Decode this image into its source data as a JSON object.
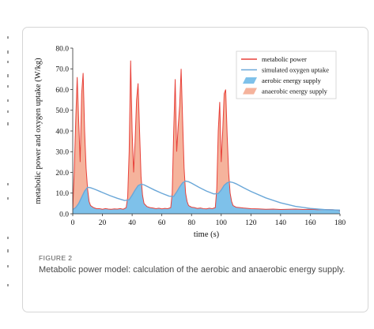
{
  "figure": {
    "label": "FIGURE 2",
    "caption": "Metabolic power model: calculation of the aerobic and anaerobic energy supply."
  },
  "colors": {
    "metabolic": "#e8413a",
    "oxygen": "#6aa7d8",
    "aerobic_fill": "#7ec1ea",
    "anaerobic_fill": "#f5b39c"
  },
  "chart_data": {
    "type": "area",
    "xlabel": "time (s)",
    "ylabel": "metabolic power and oxygen uptake (W/kg)",
    "xlim": [
      0,
      180
    ],
    "ylim": [
      0,
      80
    ],
    "xticks": [
      0,
      20,
      40,
      60,
      80,
      100,
      120,
      140,
      160,
      180
    ],
    "yticks": [
      "0.0",
      "10.0",
      "20.0",
      "30.0",
      "40.0",
      "50.0",
      "60.0",
      "70.0",
      "80.0"
    ],
    "grid": false,
    "legend_position": "top-right",
    "legend": [
      {
        "label": "metabolic power",
        "kind": "line",
        "color": "#e8413a"
      },
      {
        "label": "simulated oxygen uptake",
        "kind": "line",
        "color": "#6aa7d8"
      },
      {
        "label": "aerobic energy supply",
        "kind": "patch",
        "color": "#7ec1ea"
      },
      {
        "label": "anaerobic energy supply",
        "kind": "patch",
        "color": "#f5b39c"
      }
    ],
    "series": [
      {
        "name": "metabolic power",
        "x": [
          0,
          1,
          2,
          3,
          4,
          5,
          6,
          7,
          8,
          9,
          10,
          11,
          12,
          14,
          16,
          18,
          20,
          22,
          24,
          26,
          28,
          30,
          32,
          34,
          36,
          37,
          38,
          39,
          40,
          41,
          42,
          43,
          44,
          45,
          46,
          47,
          48,
          50,
          52,
          54,
          56,
          58,
          60,
          62,
          64,
          66,
          67,
          68,
          69,
          70,
          71,
          72,
          73,
          74,
          75,
          76,
          77,
          78,
          80,
          82,
          84,
          86,
          88,
          90,
          92,
          94,
          96,
          97,
          98,
          99,
          100,
          101,
          102,
          103,
          104,
          105,
          106,
          107,
          108,
          110,
          115,
          120,
          125,
          130,
          135,
          140,
          145,
          150,
          155,
          160,
          165,
          170,
          175,
          178,
          180
        ],
        "y": [
          2,
          20,
          45,
          66,
          45,
          25,
          58,
          68,
          40,
          22,
          12,
          6,
          4,
          3,
          2.5,
          2.5,
          2.2,
          2.5,
          2.3,
          2.2,
          2.4,
          2.3,
          2.5,
          2.2,
          3,
          8,
          30,
          74,
          40,
          20,
          35,
          55,
          63,
          40,
          18,
          9,
          5,
          3.5,
          3,
          2.8,
          2.5,
          2.7,
          2.4,
          2.6,
          2.5,
          3,
          10,
          40,
          65,
          30,
          42,
          52,
          70,
          45,
          22,
          10,
          6,
          4,
          3.2,
          3,
          2.6,
          2.8,
          2.5,
          2.4,
          2.7,
          2.5,
          3,
          12,
          40,
          54,
          25,
          40,
          58,
          60,
          38,
          20,
          10,
          6,
          4,
          3.2,
          2.8,
          2.5,
          2.4,
          2.2,
          2.3,
          2.1,
          2.2,
          2.3,
          2.1,
          2.2,
          2,
          2.1,
          2,
          1.8,
          1.5
        ]
      },
      {
        "name": "simulated oxygen uptake",
        "x": [
          0,
          2,
          4,
          6,
          8,
          10,
          12,
          15,
          20,
          25,
          30,
          35,
          38,
          40,
          42,
          44,
          46,
          48,
          50,
          55,
          60,
          65,
          68,
          70,
          72,
          74,
          76,
          78,
          80,
          85,
          90,
          95,
          98,
          100,
          102,
          104,
          106,
          108,
          110,
          115,
          120,
          130,
          140,
          150,
          160,
          170,
          180
        ],
        "y": [
          2,
          3,
          5,
          8,
          11,
          12.8,
          12.6,
          11.8,
          10.3,
          8.8,
          7.5,
          6.4,
          6.8,
          9,
          11.5,
          13.6,
          14.3,
          14,
          13.3,
          11.5,
          9.9,
          8.5,
          8.4,
          10.5,
          13,
          15,
          15.8,
          15.5,
          14.8,
          12.8,
          11,
          9.6,
          9.8,
          11.5,
          13.8,
          15,
          15.4,
          15.1,
          14.5,
          12.6,
          10.8,
          7.7,
          5.3,
          3.6,
          2.6,
          2,
          1.8
        ]
      }
    ]
  }
}
